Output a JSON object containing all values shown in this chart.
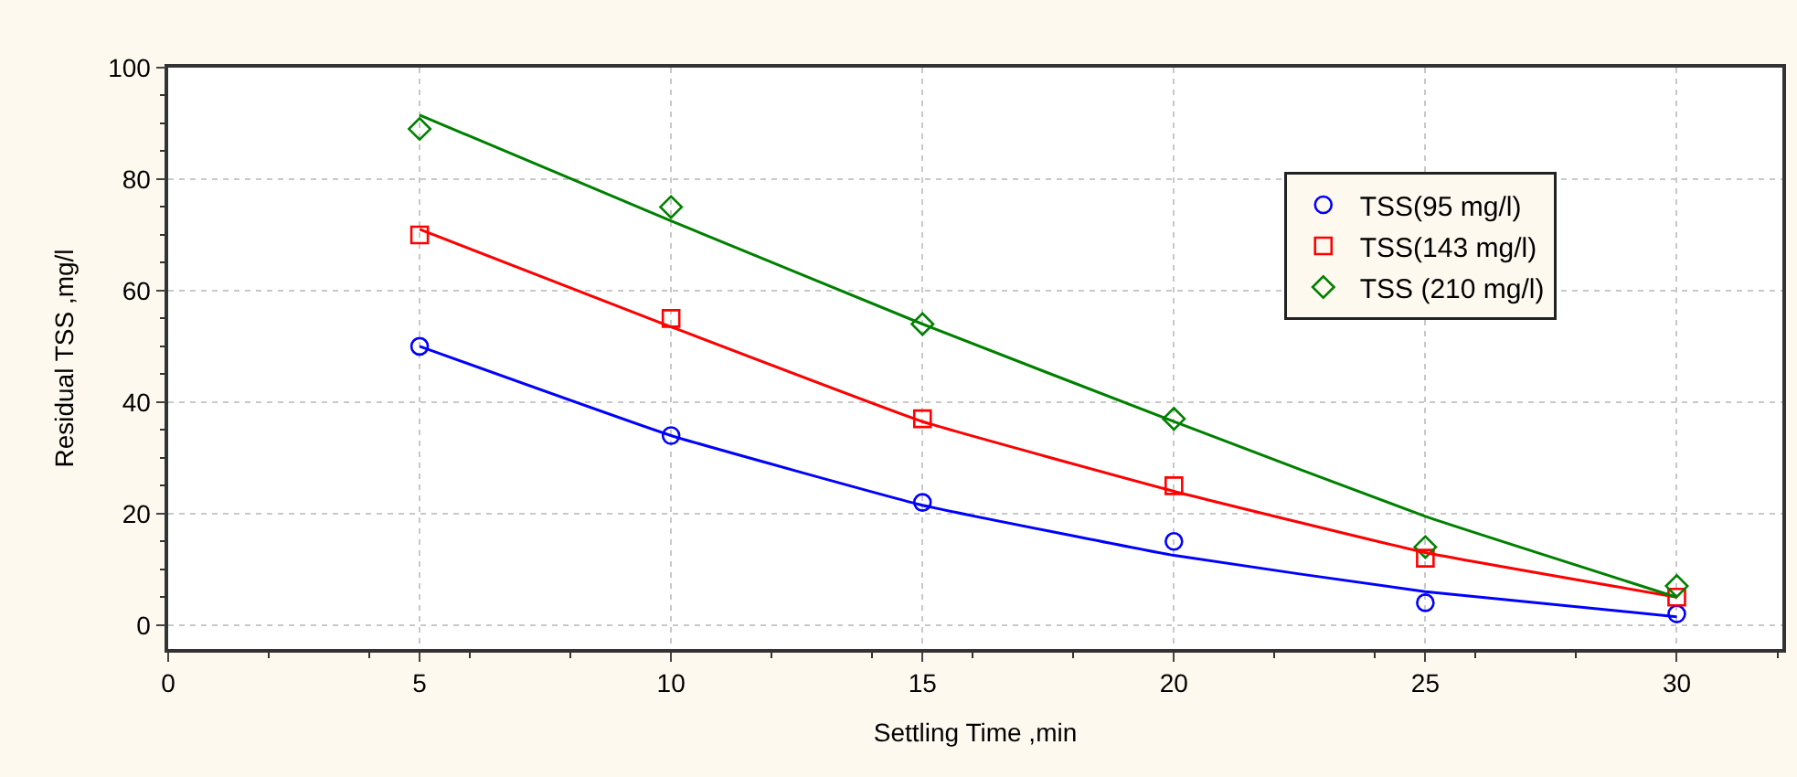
{
  "chart_data": {
    "type": "scatter",
    "xlabel": "Settling Time ,min",
    "ylabel": "Residual TSS ,mg/l",
    "x": [
      5,
      10,
      15,
      20,
      25,
      30
    ],
    "series": [
      {
        "name": "TSS(95 mg/l)",
        "color": "#0000ff",
        "marker": "circle",
        "values": [
          50,
          34,
          22,
          15,
          4,
          2
        ]
      },
      {
        "name": "TSS(143 mg/l)",
        "color": "#ff0000",
        "marker": "square",
        "values": [
          70,
          55,
          37,
          25,
          12,
          5
        ]
      },
      {
        "name": "TSS (210 mg/l)",
        "color": "#008000",
        "marker": "diamond",
        "values": [
          89,
          75,
          54,
          37,
          14,
          7
        ]
      },
      {
        "type": "line",
        "color": "#0000ff",
        "x": [
          5,
          10,
          15,
          20,
          25,
          30
        ],
        "values": [
          50,
          34,
          21.5,
          12.5,
          6,
          1.5
        ]
      },
      {
        "type": "line",
        "color": "#ff0000",
        "x": [
          5,
          10,
          15,
          20,
          25,
          30
        ],
        "values": [
          71,
          53.5,
          36.5,
          24,
          13,
          5
        ]
      },
      {
        "type": "line",
        "color": "#008000",
        "x": [
          5,
          10,
          15,
          20,
          25,
          30
        ],
        "values": [
          91.5,
          72.5,
          54,
          36.5,
          19.5,
          5
        ]
      }
    ],
    "xlim": [
      0,
      32.1
    ],
    "xticks": [
      0,
      5,
      10,
      15,
      20,
      25,
      30
    ],
    "ylim": [
      -4.3,
      100
    ],
    "yticks": [
      0,
      20,
      40,
      60,
      80,
      100
    ],
    "grid": true,
    "legend": "top right"
  }
}
